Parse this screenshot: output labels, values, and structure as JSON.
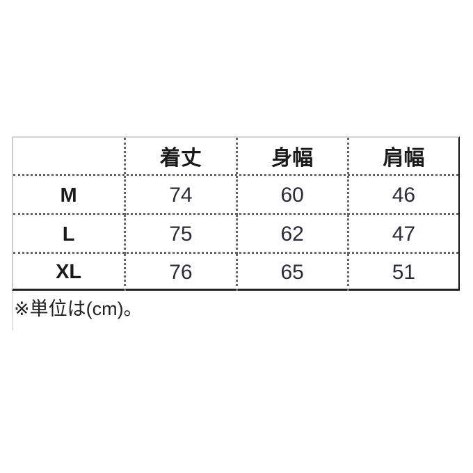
{
  "table": {
    "headers": [
      "",
      "着丈",
      "身幅",
      "肩幅"
    ],
    "rows": [
      {
        "size": "M",
        "values": [
          "74",
          "60",
          "46"
        ]
      },
      {
        "size": "L",
        "values": [
          "75",
          "62",
          "47"
        ]
      },
      {
        "size": "XL",
        "values": [
          "76",
          "65",
          "51"
        ]
      }
    ]
  },
  "note": "※単位は(cm)。"
}
